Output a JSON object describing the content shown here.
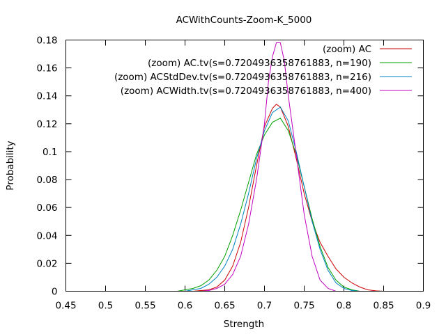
{
  "chart_data": {
    "type": "line",
    "title": "ACWithCounts-Zoom-K_5000",
    "xlabel": "Strength",
    "ylabel": "Probability",
    "xlim": [
      0.45,
      0.9
    ],
    "ylim": [
      0,
      0.18
    ],
    "xticks": [
      0.45,
      0.5,
      0.55,
      0.6,
      0.65,
      0.7,
      0.75,
      0.8,
      0.85,
      0.9
    ],
    "xtick_labels": [
      "0.45",
      "0.5",
      "0.55",
      "0.6",
      "0.65",
      "0.7",
      "0.75",
      "0.8",
      "0.85",
      "0.9"
    ],
    "yticks": [
      0,
      0.02,
      0.04,
      0.06,
      0.08,
      0.1,
      0.12,
      0.14,
      0.16,
      0.18
    ],
    "ytick_labels": [
      "0",
      "0.02",
      "0.04",
      "0.06",
      "0.08",
      "0.1",
      "0.12",
      "0.14",
      "0.16",
      "0.18"
    ],
    "grid": false,
    "legend_position": "top-right",
    "series": [
      {
        "name": "(zoom) AC",
        "color": "#cc0000",
        "x": [
          0.59,
          0.6,
          0.61,
          0.62,
          0.63,
          0.64,
          0.65,
          0.66,
          0.67,
          0.68,
          0.69,
          0.7,
          0.71,
          0.715,
          0.72,
          0.73,
          0.74,
          0.75,
          0.76,
          0.77,
          0.78,
          0.79,
          0.8,
          0.81,
          0.82,
          0.83,
          0.84,
          0.85,
          0.86
        ],
        "y": [
          0,
          0,
          0,
          0.0005,
          0.001,
          0.003,
          0.008,
          0.018,
          0.035,
          0.06,
          0.09,
          0.118,
          0.131,
          0.134,
          0.132,
          0.118,
          0.095,
          0.07,
          0.05,
          0.035,
          0.025,
          0.016,
          0.01,
          0.006,
          0.003,
          0.001,
          0.0003,
          0,
          0
        ]
      },
      {
        "name": "(zoom) AC.tv(s=0.7204936358761883, n=190)",
        "color": "#00a000",
        "x": [
          0.59,
          0.6,
          0.61,
          0.62,
          0.63,
          0.64,
          0.65,
          0.66,
          0.67,
          0.68,
          0.69,
          0.7,
          0.71,
          0.72,
          0.73,
          0.74,
          0.75,
          0.76,
          0.77,
          0.78,
          0.79,
          0.8,
          0.81,
          0.82
        ],
        "y": [
          0,
          0.001,
          0.002,
          0.004,
          0.008,
          0.015,
          0.025,
          0.04,
          0.058,
          0.078,
          0.098,
          0.112,
          0.121,
          0.124,
          0.115,
          0.098,
          0.075,
          0.052,
          0.032,
          0.017,
          0.008,
          0.003,
          0.001,
          0
        ]
      },
      {
        "name": "(zoom) ACStdDev.tv(s=0.7204936358761883, n=216)",
        "color": "#0080c0",
        "x": [
          0.59,
          0.6,
          0.61,
          0.62,
          0.63,
          0.64,
          0.65,
          0.66,
          0.67,
          0.68,
          0.69,
          0.7,
          0.71,
          0.72,
          0.73,
          0.74,
          0.75,
          0.76,
          0.77,
          0.78,
          0.79,
          0.8,
          0.81,
          0.82
        ],
        "y": [
          0,
          0,
          0.001,
          0.002,
          0.005,
          0.01,
          0.018,
          0.03,
          0.048,
          0.07,
          0.095,
          0.115,
          0.128,
          0.132,
          0.122,
          0.1,
          0.075,
          0.05,
          0.03,
          0.015,
          0.006,
          0.002,
          0.0005,
          0
        ]
      },
      {
        "name": "(zoom) ACWidth.tv(s=0.7204936358761883, n=400)",
        "color": "#c000c0",
        "x": [
          0.62,
          0.63,
          0.64,
          0.65,
          0.66,
          0.67,
          0.68,
          0.69,
          0.7,
          0.705,
          0.71,
          0.715,
          0.72,
          0.725,
          0.73,
          0.74,
          0.75,
          0.76,
          0.77,
          0.78,
          0.79
        ],
        "y": [
          0,
          0.0005,
          0.002,
          0.005,
          0.012,
          0.025,
          0.048,
          0.08,
          0.12,
          0.15,
          0.168,
          0.178,
          0.178,
          0.165,
          0.14,
          0.098,
          0.055,
          0.025,
          0.008,
          0.002,
          0
        ]
      }
    ]
  }
}
